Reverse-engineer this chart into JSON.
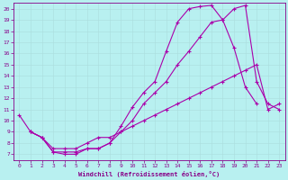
{
  "xlabel": "Windchill (Refroidissement éolien,°C)",
  "xlim": [
    -0.5,
    23.5
  ],
  "ylim": [
    6.5,
    20.5
  ],
  "xticks": [
    0,
    1,
    2,
    3,
    4,
    5,
    6,
    7,
    8,
    9,
    10,
    11,
    12,
    13,
    14,
    15,
    16,
    17,
    18,
    19,
    20,
    21,
    22,
    23
  ],
  "yticks": [
    7,
    8,
    9,
    10,
    11,
    12,
    13,
    14,
    15,
    16,
    17,
    18,
    19,
    20
  ],
  "background_color": "#b8f0f0",
  "line_color": "#aa00aa",
  "grid_color": "#aadddd",
  "curves": [
    {
      "x": [
        0,
        1,
        2,
        3,
        4,
        5,
        6,
        7,
        8,
        9,
        10,
        11,
        12,
        13,
        14,
        15,
        16,
        17,
        18,
        19,
        20,
        21
      ],
      "y": [
        10.5,
        9.0,
        8.5,
        7.2,
        7.0,
        7.0,
        7.5,
        7.5,
        8.0,
        9.5,
        11.2,
        12.5,
        13.5,
        16.2,
        18.8,
        20.0,
        20.2,
        20.3,
        19.0,
        16.5,
        13.0,
        11.5
      ],
      "style": "solid",
      "marker": true
    },
    {
      "x": [
        1,
        2,
        3,
        4,
        5,
        6,
        7,
        8,
        9,
        10,
        11,
        12,
        13,
        14,
        15,
        16,
        17,
        18,
        19,
        20,
        21,
        22,
        23
      ],
      "y": [
        9.0,
        8.5,
        7.2,
        7.2,
        7.2,
        7.5,
        7.5,
        8.0,
        9.0,
        10.0,
        11.5,
        12.5,
        13.5,
        15.0,
        16.2,
        17.5,
        18.8,
        19.0,
        20.0,
        20.3,
        13.5,
        11.5,
        11.0
      ],
      "style": "solid",
      "marker": true
    },
    {
      "x": [
        1,
        2,
        3,
        4,
        5,
        6,
        7,
        8,
        9,
        10,
        11,
        12,
        13,
        14,
        15,
        16,
        17,
        18,
        19,
        20,
        21,
        22,
        23
      ],
      "y": [
        9.0,
        8.5,
        7.5,
        7.5,
        7.5,
        8.0,
        8.5,
        8.5,
        9.0,
        9.5,
        10.0,
        10.5,
        11.0,
        11.5,
        12.0,
        12.5,
        13.0,
        13.5,
        14.0,
        14.5,
        15.0,
        11.0,
        11.5
      ],
      "style": "solid",
      "marker": true
    }
  ]
}
